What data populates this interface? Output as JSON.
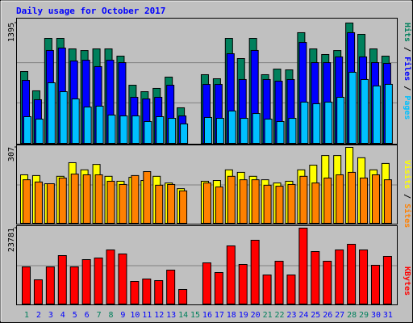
{
  "chart_data": [
    {
      "type": "bar",
      "title": "Daily usage for October 2017",
      "categories": [
        "1",
        "2",
        "3",
        "4",
        "5",
        "6",
        "7",
        "8",
        "9",
        "10",
        "11",
        "12",
        "13",
        "14",
        "15",
        "16",
        "17",
        "18",
        "19",
        "20",
        "21",
        "22",
        "23",
        "24",
        "25",
        "26",
        "27",
        "28",
        "29",
        "30",
        "31"
      ],
      "ylim": [
        0,
        1395
      ],
      "yticks": [
        1395
      ],
      "series": [
        {
          "name": "Hits",
          "color": "#00805c",
          "values": [
            833,
            609,
            1217,
            1217,
            1095,
            1076,
            1095,
            1095,
            1011,
            674,
            599,
            637,
            768,
            412,
            0,
            796,
            749,
            1217,
            983,
            1217,
            796,
            861,
            852,
            1283,
            1095,
            1030,
            1076,
            1395,
            1264,
            1095,
            1011
          ]
        },
        {
          "name": "Files",
          "color": "#0000ff",
          "values": [
            730,
            506,
            1077,
            1105,
            955,
            964,
            890,
            964,
            936,
            534,
            515,
            534,
            674,
            318,
            0,
            683,
            683,
            1039,
            740,
            1077,
            740,
            721,
            740,
            1170,
            936,
            936,
            1002,
            1283,
            1002,
            936,
            927
          ]
        },
        {
          "name": "Pages",
          "color": "#00c0ff",
          "values": [
            309,
            281,
            702,
            599,
            515,
            421,
            431,
            328,
            318,
            318,
            253,
            309,
            290,
            225,
            0,
            300,
            290,
            375,
            290,
            346,
            281,
            253,
            290,
            478,
            459,
            478,
            534,
            824,
            740,
            665,
            684
          ]
        }
      ]
    },
    {
      "type": "bar",
      "categories": [
        "1",
        "2",
        "3",
        "4",
        "5",
        "6",
        "7",
        "8",
        "9",
        "10",
        "11",
        "12",
        "13",
        "14",
        "15",
        "16",
        "17",
        "18",
        "19",
        "20",
        "21",
        "22",
        "23",
        "24",
        "25",
        "26",
        "27",
        "28",
        "29",
        "30",
        "31"
      ],
      "ylim": [
        0,
        307
      ],
      "yticks": [
        307
      ],
      "series": [
        {
          "name": "Visits",
          "color": "#ffff00",
          "values": [
            196,
            193,
            160,
            190,
            245,
            216,
            238,
            190,
            170,
            186,
            173,
            190,
            163,
            140,
            0,
            170,
            173,
            216,
            206,
            190,
            176,
            163,
            170,
            216,
            235,
            274,
            274,
            307,
            265,
            216,
            242
          ]
        },
        {
          "name": "Sites",
          "color": "#ff8000",
          "values": [
            176,
            167,
            160,
            183,
            199,
            196,
            196,
            170,
            157,
            193,
            209,
            154,
            157,
            131,
            0,
            163,
            147,
            190,
            176,
            176,
            154,
            150,
            157,
            190,
            163,
            183,
            196,
            206,
            183,
            196,
            176
          ]
        }
      ]
    },
    {
      "type": "bar",
      "categories": [
        "1",
        "2",
        "3",
        "4",
        "5",
        "6",
        "7",
        "8",
        "9",
        "10",
        "11",
        "12",
        "13",
        "14",
        "15",
        "16",
        "17",
        "18",
        "19",
        "20",
        "21",
        "22",
        "23",
        "24",
        "25",
        "26",
        "27",
        "28",
        "29",
        "30",
        "31"
      ],
      "x_label_colors": [
        "#00805c",
        "#0000ff",
        "#0000ff",
        "#0000ff",
        "#0000ff",
        "#0000ff",
        "#00805c",
        "#00805c",
        "#0000ff",
        "#0000ff",
        "#0000ff",
        "#0000ff",
        "#0000ff",
        "#00805c",
        "#00805c",
        "#0000ff",
        "#0000ff",
        "#0000ff",
        "#0000ff",
        "#0000ff",
        "#00805c",
        "#00805c",
        "#0000ff",
        "#0000ff",
        "#0000ff",
        "#0000ff",
        "#0000ff",
        "#00805c",
        "#00805c",
        "#0000ff",
        "#0000ff"
      ],
      "ylim": [
        0,
        23781
      ],
      "yticks": [
        23781
      ],
      "series": [
        {
          "name": "KBytes",
          "color": "#ff0000",
          "values": [
            11637,
            7590,
            11637,
            15180,
            11637,
            13914,
            14420,
            16950,
            15686,
            7084,
            7843,
            7337,
            10625,
            4554,
            0,
            12903,
            9867,
            18215,
            12397,
            19986,
            9108,
            13409,
            9108,
            23781,
            16445,
            13409,
            16950,
            18722,
            16950,
            12144,
            14927
          ]
        }
      ]
    }
  ]
}
